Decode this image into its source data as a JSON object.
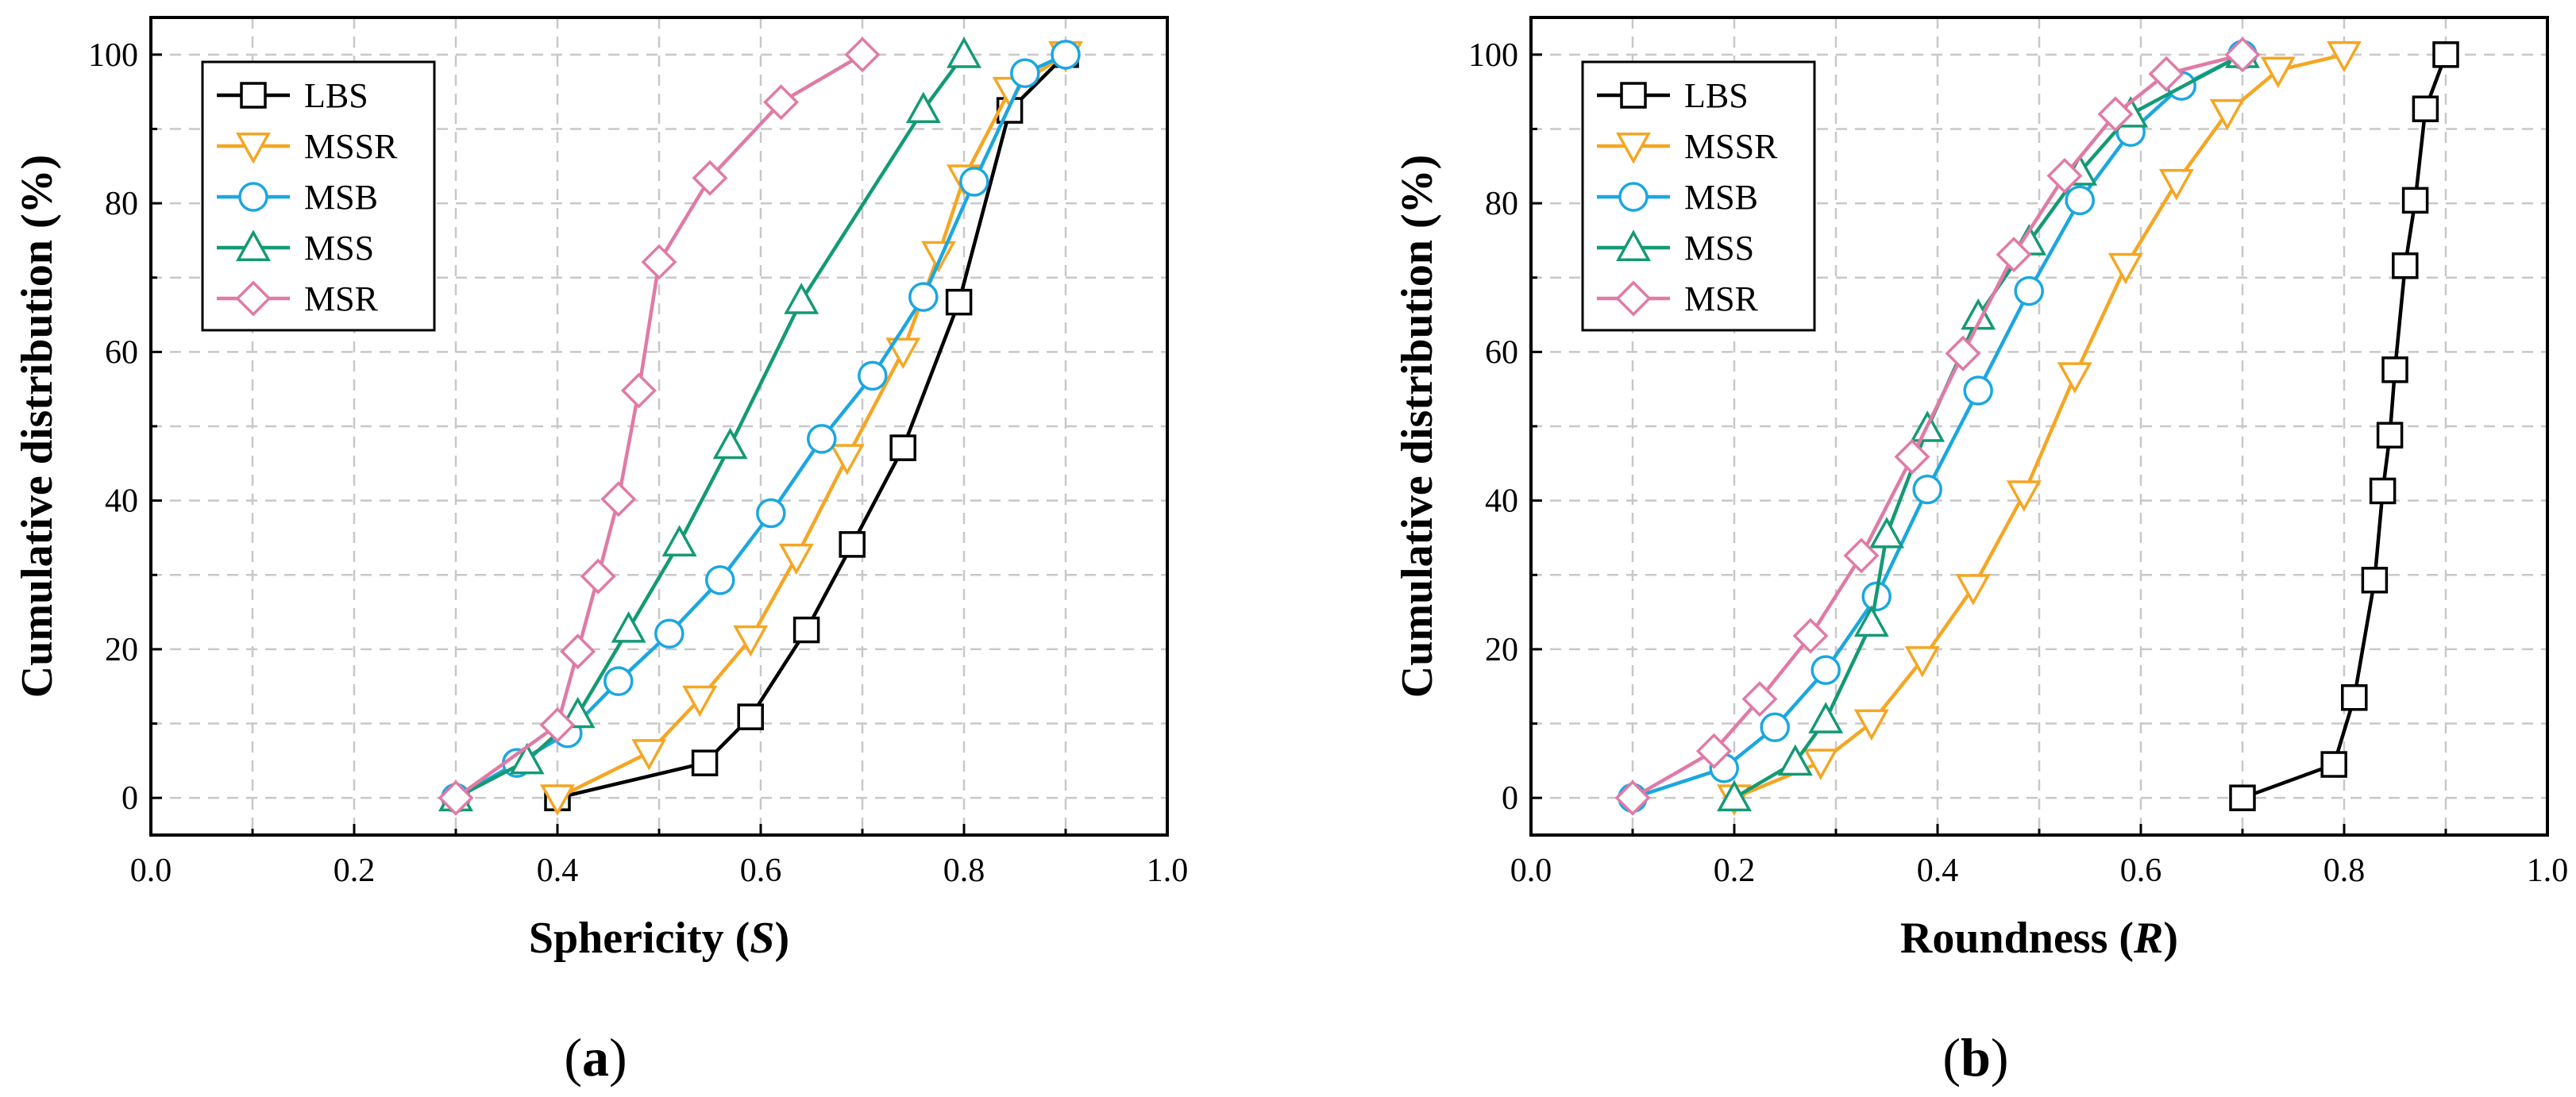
{
  "colors": {
    "LBS": "#000000",
    "MSSR": "#F5A623",
    "MSB": "#1BA7E0",
    "MSS": "#139A74",
    "MSR": "#E07AA6"
  },
  "chart_data": [
    {
      "type": "line",
      "panel_label": "(a)",
      "panel_letter": "a",
      "title": "",
      "xlabel": "Sphericity",
      "xlabel_symbol": "S",
      "ylabel": "Cumulative distribution (%)",
      "xlim": [
        0.0,
        1.0
      ],
      "ylim": [
        -5,
        105
      ],
      "xticks": [
        "0.0",
        "0.2",
        "0.4",
        "0.6",
        "0.8",
        "1.0"
      ],
      "yticks": [
        "0",
        "20",
        "40",
        "60",
        "80",
        "100"
      ],
      "grid": true,
      "legend_position": "top-left",
      "series": [
        {
          "name": "LBS",
          "marker": "square",
          "x": [
            0.4,
            0.545,
            0.59,
            0.645,
            0.69,
            0.74,
            0.795,
            0.845,
            0.9
          ],
          "y": [
            0,
            4.7,
            10.9,
            22.6,
            34.1,
            47.1,
            66.7,
            92.5,
            100
          ]
        },
        {
          "name": "MSSR",
          "marker": "triangle-down",
          "x": [
            0.4,
            0.49,
            0.54,
            0.59,
            0.635,
            0.685,
            0.74,
            0.775,
            0.8,
            0.845,
            0.9
          ],
          "y": [
            0,
            6.1,
            13.3,
            21.4,
            32.4,
            45.8,
            60.1,
            73.1,
            83.4,
            95.2,
            100
          ]
        },
        {
          "name": "MSB",
          "marker": "circle",
          "x": [
            0.3,
            0.36,
            0.41,
            0.46,
            0.51,
            0.56,
            0.61,
            0.66,
            0.71,
            0.76,
            0.81,
            0.86,
            0.9
          ],
          "y": [
            0,
            4.7,
            8.7,
            15.7,
            22.1,
            29.3,
            38.3,
            48.3,
            56.8,
            67.4,
            82.9,
            97.5,
            100
          ]
        },
        {
          "name": "MSS",
          "marker": "triangle-up",
          "x": [
            0.3,
            0.37,
            0.42,
            0.47,
            0.52,
            0.57,
            0.64,
            0.76,
            0.8
          ],
          "y": [
            0,
            5.0,
            11.2,
            22.7,
            34.3,
            47.4,
            66.9,
            92.6,
            100
          ]
        },
        {
          "name": "MSR",
          "marker": "diamond",
          "x": [
            0.3,
            0.4,
            0.42,
            0.44,
            0.46,
            0.48,
            0.5,
            0.55,
            0.62,
            0.7
          ],
          "y": [
            0,
            9.8,
            19.7,
            29.8,
            40.2,
            54.8,
            72.1,
            83.4,
            93.6,
            100
          ]
        }
      ]
    },
    {
      "type": "line",
      "panel_label": "(b)",
      "panel_letter": "b",
      "title": "",
      "xlabel": "Roundness",
      "xlabel_symbol": "R",
      "ylabel": "Cumulative distribution (%)",
      "xlim": [
        0.0,
        1.0
      ],
      "ylim": [
        -5,
        105
      ],
      "xticks": [
        "0.0",
        "0.2",
        "0.4",
        "0.6",
        "0.8",
        "1.0"
      ],
      "yticks": [
        "0",
        "20",
        "40",
        "60",
        "80",
        "100"
      ],
      "grid": true,
      "legend_position": "top-left",
      "series": [
        {
          "name": "LBS",
          "marker": "square",
          "x": [
            0.7,
            0.79,
            0.81,
            0.83,
            0.838,
            0.845,
            0.85,
            0.86,
            0.87,
            0.88,
            0.9
          ],
          "y": [
            0,
            4.5,
            13.5,
            29.3,
            41.3,
            48.8,
            57.6,
            71.6,
            80.4,
            92.7,
            100
          ]
        },
        {
          "name": "MSSR",
          "marker": "triangle-down",
          "x": [
            0.2,
            0.285,
            0.335,
            0.385,
            0.435,
            0.485,
            0.535,
            0.585,
            0.635,
            0.685,
            0.735,
            0.8
          ],
          "y": [
            0,
            4.8,
            10.1,
            18.6,
            28.3,
            40.9,
            56.8,
            71.5,
            82.8,
            92.2,
            97.9,
            100
          ]
        },
        {
          "name": "MSB",
          "marker": "circle",
          "x": [
            0.1,
            0.19,
            0.24,
            0.29,
            0.34,
            0.39,
            0.44,
            0.49,
            0.54,
            0.59,
            0.64,
            0.7
          ],
          "y": [
            0,
            4.0,
            9.5,
            17.2,
            27.1,
            41.5,
            54.8,
            68.2,
            80.4,
            89.6,
            95.8,
            100
          ]
        },
        {
          "name": "MSS",
          "marker": "triangle-up",
          "x": [
            0.2,
            0.26,
            0.29,
            0.335,
            0.35,
            0.39,
            0.44,
            0.49,
            0.54,
            0.59,
            0.7
          ],
          "y": [
            0,
            4.8,
            10.5,
            23.5,
            35.4,
            49.7,
            64.8,
            74.8,
            84.2,
            92.0,
            100
          ]
        },
        {
          "name": "MSR",
          "marker": "diamond",
          "x": [
            0.1,
            0.18,
            0.225,
            0.275,
            0.325,
            0.375,
            0.425,
            0.475,
            0.525,
            0.575,
            0.625,
            0.7
          ],
          "y": [
            0,
            6.3,
            13.3,
            21.8,
            32.6,
            45.9,
            59.8,
            73.1,
            83.7,
            92.0,
            97.4,
            100
          ]
        }
      ]
    }
  ]
}
